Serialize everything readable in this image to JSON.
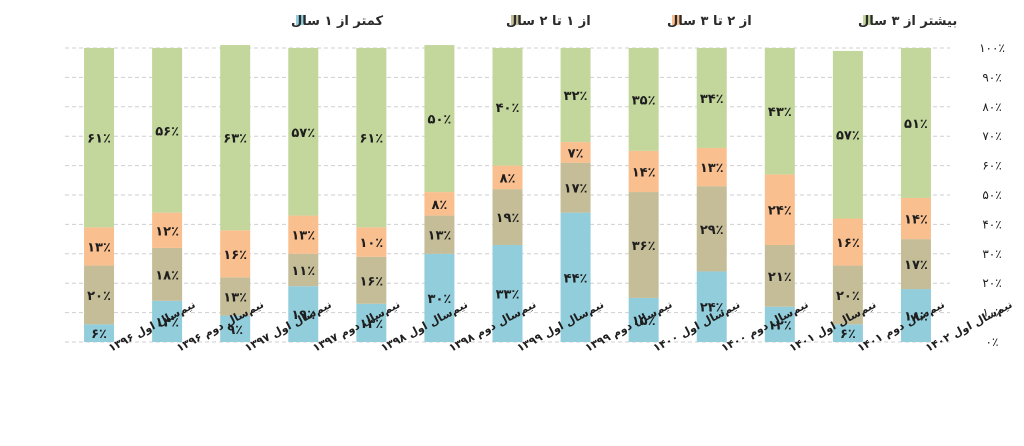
{
  "chart_data": {
    "type": "bar",
    "stacked": true,
    "title": "",
    "xlabel": "",
    "ylabel": "",
    "ylim": [
      0,
      100
    ],
    "y_tick_labels": [
      "۰٪",
      "۱۰٪",
      "۲۰٪",
      "۳۰٪",
      "۴۰٪",
      "۵۰٪",
      "۶۰٪",
      "۷۰٪",
      "۸۰٪",
      "۹۰٪",
      "۱۰۰٪"
    ],
    "y_ticks": [
      0,
      10,
      20,
      30,
      40,
      50,
      60,
      70,
      80,
      90,
      100
    ],
    "grid": true,
    "legend_position": "top",
    "categories": [
      "نیم‌سال اول ۱۳۹۶",
      "نیم‌سال دوم ۱۳۹۶",
      "نیم‌سال اول ۱۳۹۷",
      "نیم‌سال دوم ۱۳۹۷",
      "نیم‌سال اول ۱۳۹۸",
      "نیم‌سال دوم ۱۳۹۸",
      "نیم‌سال اول ۱۳۹۹",
      "نیم‌سال دوم ۱۳۹۹",
      "نیم‌سال اول ۱۴۰۰",
      "نیم‌سال دوم ۱۴۰۰",
      "نیم‌سال اول ۱۴۰۱",
      "نیم‌سال دوم ۱۴۰۱",
      "نیم‌سال اول ۱۴۰۲"
    ],
    "series": [
      {
        "name": "کمتر از ۱ سال",
        "color": "#92cddc",
        "values": [
          6,
          14,
          9,
          19,
          13,
          30,
          33,
          44,
          15,
          24,
          12,
          6,
          18
        ],
        "labels": [
          "۶٪",
          "۱۴٪",
          "۹٪",
          "۱۹٪",
          "۱۳٪",
          "۳۰٪",
          "۳۳٪",
          "۴۴٪",
          "۱۵٪",
          "۲۴٪",
          "۱۲٪",
          "۶٪",
          "۱۸٪"
        ]
      },
      {
        "name": "از ۱ تا ۲ سال",
        "color": "#c4bd97",
        "values": [
          20,
          18,
          13,
          11,
          16,
          13,
          19,
          17,
          36,
          29,
          21,
          20,
          17
        ],
        "labels": [
          "۲۰٪",
          "۱۸٪",
          "۱۳٪",
          "۱۱٪",
          "۱۶٪",
          "۱۳٪",
          "۱۹٪",
          "۱۷٪",
          "۳۶٪",
          "۲۹٪",
          "۲۱٪",
          "۲۰٪",
          "۱۷٪"
        ]
      },
      {
        "name": "از ۲ تا ۳ سال",
        "color": "#fabf8f",
        "values": [
          13,
          12,
          16,
          13,
          10,
          8,
          8,
          7,
          14,
          13,
          24,
          16,
          14
        ],
        "labels": [
          "۱۳٪",
          "۱۲٪",
          "۱۶٪",
          "۱۳٪",
          "۱۰٪",
          "۸٪",
          "۸٪",
          "۷٪",
          "۱۴٪",
          "۱۳٪",
          "۲۴٪",
          "۱۶٪",
          "۱۴٪"
        ]
      },
      {
        "name": "بیشتر از ۳ سال",
        "color": "#c3d69b",
        "values": [
          61,
          56,
          63,
          57,
          61,
          50,
          40,
          32,
          35,
          34,
          43,
          57,
          51
        ],
        "labels": [
          "۶۱٪",
          "۵۶٪",
          "۶۳٪",
          "۵۷٪",
          "۶۱٪",
          "۵۰٪",
          "۴۰٪",
          "۳۲٪",
          "۳۵٪",
          "۳۴٪",
          "۴۳٪",
          "۵۷٪",
          "۵۱٪"
        ]
      }
    ]
  }
}
